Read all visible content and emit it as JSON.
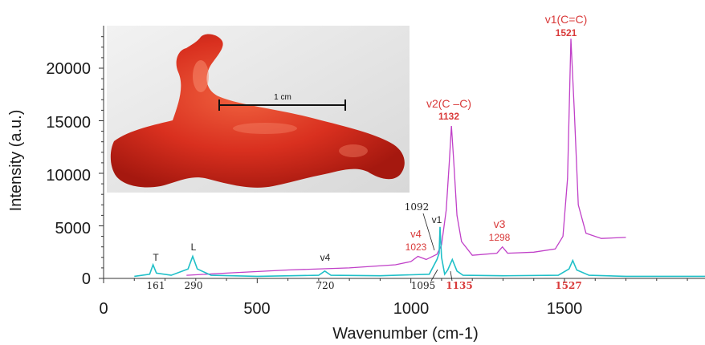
{
  "chart_data": {
    "type": "line",
    "xlabel": "Wavenumber (cm-1)",
    "ylabel": "Intensity (a.u.)",
    "xlim": [
      0,
      1960
    ],
    "ylim": [
      -600,
      24000
    ],
    "x_ticks": [
      "0",
      "500",
      "1000",
      "1500"
    ],
    "y_ticks": [
      "0",
      "5000",
      "10000",
      "15000",
      "20000"
    ],
    "colors": {
      "magenta": "#c040c8",
      "cyan": "#20c0c8",
      "red": "#d93a3a",
      "black": "#222222"
    },
    "series": [
      {
        "color": "#c040c8",
        "x": [
          270,
          400,
          600,
          800,
          950,
          1000,
          1023,
          1050,
          1085,
          1100,
          1115,
          1125,
          1132,
          1140,
          1150,
          1165,
          1200,
          1280,
          1298,
          1315,
          1400,
          1470,
          1495,
          1510,
          1521,
          1532,
          1545,
          1570,
          1620,
          1700
        ],
        "y": [
          300,
          500,
          800,
          1000,
          1300,
          1600,
          2100,
          1800,
          2300,
          3200,
          6500,
          11000,
          14500,
          11000,
          6000,
          3500,
          2200,
          2400,
          3000,
          2400,
          2500,
          2800,
          4000,
          9500,
          22800,
          16000,
          7000,
          4300,
          3800,
          3900
        ]
      },
      {
        "color": "#20c0c8",
        "x": [
          100,
          150,
          161,
          172,
          220,
          275,
          290,
          305,
          350,
          500,
          700,
          720,
          740,
          900,
          1060,
          1085,
          1092,
          1095,
          1100,
          1110,
          1120,
          1135,
          1150,
          1170,
          1300,
          1480,
          1515,
          1527,
          1540,
          1580,
          1700,
          1960
        ],
        "y": [
          200,
          400,
          1300,
          500,
          300,
          900,
          2100,
          900,
          300,
          200,
          300,
          700,
          300,
          250,
          400,
          1800,
          2400,
          4900,
          2000,
          400,
          800,
          1800,
          700,
          300,
          250,
          300,
          900,
          1700,
          800,
          300,
          200,
          200
        ]
      }
    ],
    "annotations": [
      {
        "id": "T",
        "text": "T"
      },
      {
        "id": "L",
        "text": "L"
      },
      {
        "id": "v4-cyan",
        "text": "v4"
      },
      {
        "id": "1092",
        "text": "1092"
      },
      {
        "id": "v1-cyan",
        "text": "v1"
      },
      {
        "id": "v4-mag",
        "text": "v4"
      },
      {
        "id": "1023",
        "text": "1023"
      },
      {
        "id": "v2",
        "text": "v2(C –C)"
      },
      {
        "id": "1132",
        "text": "1132"
      },
      {
        "id": "v3",
        "text": "v3"
      },
      {
        "id": "1298",
        "text": "1298"
      },
      {
        "id": "v1cc",
        "text": "v1(C=C)"
      },
      {
        "id": "1521",
        "text": "1521"
      },
      {
        "id": "161",
        "text": "161"
      },
      {
        "id": "290",
        "text": "290"
      },
      {
        "id": "720",
        "text": "720"
      },
      {
        "id": "1095",
        "text": "1095"
      },
      {
        "id": "1135",
        "text": "1135"
      },
      {
        "id": "1527",
        "text": "1527"
      }
    ],
    "inset": {
      "scale_label": "1 cm"
    }
  }
}
